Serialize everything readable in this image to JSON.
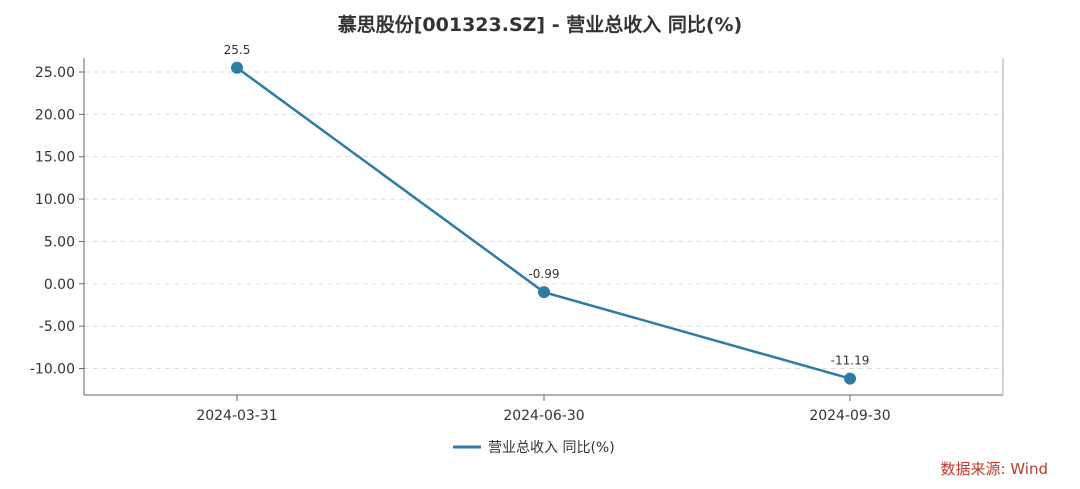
{
  "chart_data": {
    "type": "line",
    "title": "慕思股份[001323.SZ] - 营业总收入 同比(%)",
    "xlabel": "",
    "ylabel": "",
    "categories": [
      "2024-03-31",
      "2024-06-30",
      "2024-09-30"
    ],
    "series": [
      {
        "name": "营业总收入 同比(%)",
        "values": [
          25.5,
          -0.99,
          -11.19
        ],
        "value_labels": [
          "25.5",
          "-0.99",
          "-11.19"
        ],
        "color": "#2e7ba6"
      }
    ],
    "ylim": [
      -12.5,
      27.5
    ],
    "yticks": [
      -10,
      -5,
      0,
      5,
      10,
      15,
      20,
      25
    ],
    "ytick_labels": [
      "-10.00",
      "-5.00",
      "0.00",
      "5.00",
      "10.00",
      "15.00",
      "20.00",
      "25.00"
    ],
    "grid": true,
    "legend_position": "bottom-center"
  },
  "source": "数据来源: Wind"
}
